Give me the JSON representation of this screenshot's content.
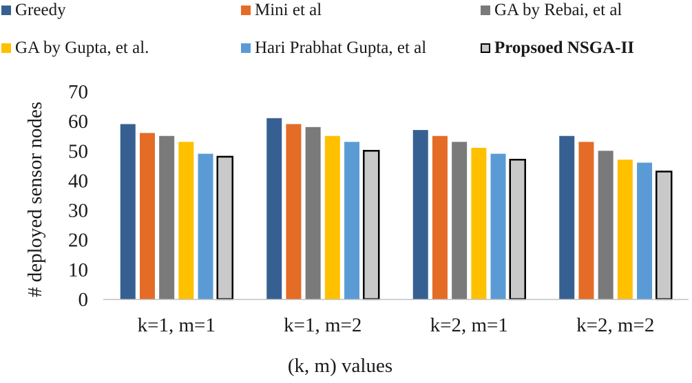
{
  "chart_data": {
    "type": "bar",
    "title": "",
    "xlabel": "(k, m) values",
    "ylabel": "# deployed sensor nodes",
    "ylim": [
      0,
      70
    ],
    "yticks": [
      0,
      10,
      20,
      30,
      40,
      50,
      60,
      70
    ],
    "grid": false,
    "legend_position": "top",
    "categories": [
      "k=1, m=1",
      "k=1, m=2",
      "k=2, m=1",
      "k=2, m=2"
    ],
    "series": [
      {
        "name": "Greedy",
        "color": "#376092",
        "values": [
          59,
          61,
          57,
          55
        ]
      },
      {
        "name": "Mini et al",
        "color": "#e46c26",
        "values": [
          56,
          59,
          55,
          53
        ]
      },
      {
        "name": "GA by Rebai, et al",
        "color": "#7a7a7a",
        "values": [
          55,
          58,
          53,
          50
        ]
      },
      {
        "name": "GA by Gupta, et al.",
        "color": "#ffc000",
        "values": [
          53,
          55,
          51,
          47
        ]
      },
      {
        "name": "Hari Prabhat Gupta, et al",
        "color": "#5b9bd5",
        "values": [
          49,
          53,
          49,
          46
        ]
      },
      {
        "name": "Propsoed NSGA-II",
        "color": "#c9c9c9",
        "outline": "#000000",
        "bold": true,
        "values": [
          48,
          50,
          47,
          43
        ]
      }
    ]
  }
}
